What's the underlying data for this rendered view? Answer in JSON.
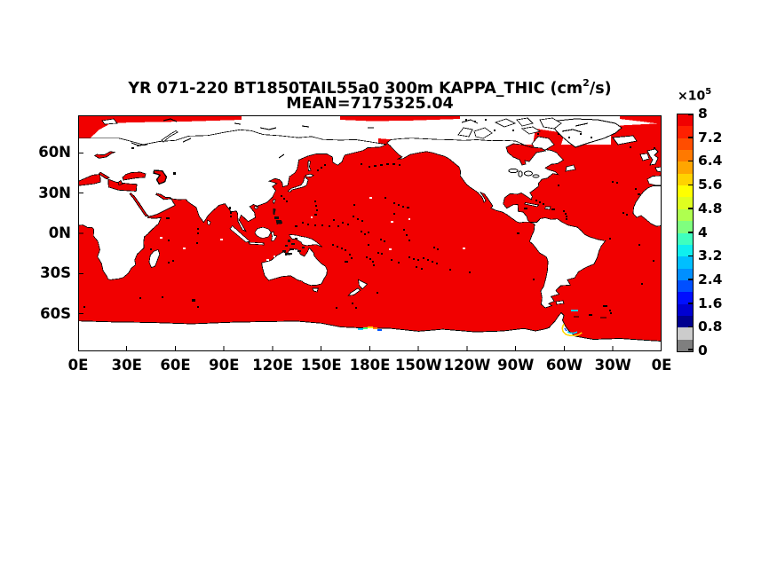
{
  "title": {
    "part1": "YR 071-220 BT1850TAIL55a0 300m KAPPA_THIC (cm",
    "sup": "2",
    "part2": "/s)",
    "line2": "MEAN=7175325.04"
  },
  "axes": {
    "x_tick_labels": [
      "0E",
      "30E",
      "60E",
      "90E",
      "120E",
      "150E",
      "180E",
      "150W",
      "120W",
      "90W",
      "60W",
      "30W",
      "0E"
    ],
    "y_tick_labels": [
      "60N",
      "30N",
      "0N",
      "30S",
      "60S"
    ]
  },
  "colorbar": {
    "exp_base": "×10",
    "exp_sup": "5",
    "tick_labels": [
      "8",
      "7.2",
      "6.4",
      "5.6",
      "4.8",
      "4",
      "3.2",
      "2.4",
      "1.6",
      "0.8",
      "0"
    ],
    "colors_bottom_to_top": [
      "#7f7f7f",
      "#cccccc",
      "#00008f",
      "#0000d2",
      "#000fff",
      "#004fff",
      "#008fff",
      "#00bfff",
      "#0fefef",
      "#3fffbf",
      "#7fff7f",
      "#afff4f",
      "#dfff1f",
      "#ffff00",
      "#ffd300",
      "#ffa600",
      "#ff7900",
      "#ff4d00",
      "#ff2000",
      "#f10000"
    ],
    "ocean_color": "#f10000",
    "land_color": "#ffffff",
    "coast_color": "#000000"
  },
  "chart_data": {
    "type": "heatmap",
    "title": "YR 071-220 BT1850TAIL55a0 300m KAPPA_THIC (cm^2/s)",
    "subtitle": "MEAN=7175325.04",
    "variable": "KAPPA_THIC",
    "depth": "300m",
    "units": "cm^2/s",
    "mean_value": 7175325.04,
    "projection": "global equirectangular, Pacific-centered (0E at both edges)",
    "x_axis": {
      "label": "longitude",
      "ticks": [
        "0E",
        "30E",
        "60E",
        "90E",
        "120E",
        "150E",
        "180E",
        "150W",
        "120W",
        "90W",
        "60W",
        "30W",
        "0E"
      ]
    },
    "y_axis": {
      "label": "latitude",
      "ticks": [
        "60N",
        "30N",
        "0N",
        "30S",
        "60S"
      ]
    },
    "colorbar": {
      "scale": "x10^5",
      "min": 0,
      "max": 800000,
      "tick_values_x1e5": [
        0,
        0.8,
        1.6,
        2.4,
        3.2,
        4,
        4.8,
        5.6,
        6.4,
        7.2,
        8
      ],
      "n_discrete_colors": 20,
      "bottom_colors": "gray shades below ~0.8e5, jet-like blue-to-red above"
    },
    "field_summary": "Nearly all ocean points saturated at the red end of the colorbar (~7-8e5 cm^2/s); land masked white with black coastlines; small sub-maximum (yellow/cyan/blue) streaks along the Antarctic coast near the Ross Sea and the Antarctic Peninsula"
  }
}
